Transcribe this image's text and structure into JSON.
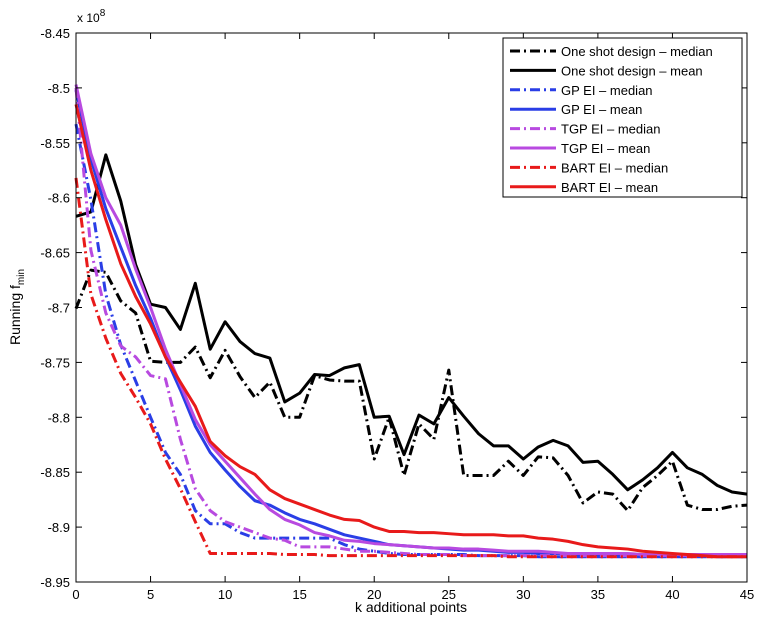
{
  "chart_data": {
    "type": "line",
    "title": "",
    "xlabel": "k additional points",
    "ylabel_main": "Running f",
    "ylabel_sub": "min",
    "y_exponent_base": "x 10",
    "y_exponent_power": "8",
    "xlim": [
      0,
      45
    ],
    "ylim": [
      -8.95,
      -8.45
    ],
    "x_ticks": [
      0,
      5,
      10,
      15,
      20,
      25,
      30,
      35,
      40,
      45
    ],
    "x_tick_labels": [
      "0",
      "5",
      "10",
      "15",
      "20",
      "25",
      "30",
      "35",
      "40",
      "45"
    ],
    "y_ticks": [
      -8.45,
      -8.5,
      -8.55,
      -8.6,
      -8.65,
      -8.7,
      -8.75,
      -8.8,
      -8.85,
      -8.9,
      -8.95
    ],
    "y_tick_labels": [
      "-8.45",
      "-8.5",
      "-8.55",
      "-8.6",
      "-8.65",
      "-8.7",
      "-8.75",
      "-8.8",
      "-8.85",
      "-8.9",
      "-8.95"
    ],
    "grid": false,
    "legend_position": "top-right",
    "series": [
      {
        "name": "One shot design – median",
        "color": "#000000",
        "style": "dashdot",
        "x": [
          0,
          1,
          2,
          3,
          4,
          5,
          6,
          7,
          8,
          9,
          10,
          11,
          12,
          13,
          14,
          15,
          16,
          17,
          18,
          19,
          20,
          21,
          22,
          23,
          24,
          25,
          26,
          27,
          28,
          29,
          30,
          31,
          32,
          33,
          34,
          35,
          36,
          37,
          38,
          39,
          40,
          41,
          42,
          43,
          44,
          45
        ],
        "values": [
          -8.701,
          -8.666,
          -8.668,
          -8.694,
          -8.705,
          -8.749,
          -8.75,
          -8.75,
          -8.736,
          -8.764,
          -8.739,
          -8.763,
          -8.782,
          -8.768,
          -8.8,
          -8.8,
          -8.762,
          -8.766,
          -8.767,
          -8.767,
          -8.838,
          -8.8,
          -8.853,
          -8.806,
          -8.82,
          -8.757,
          -8.853,
          -8.853,
          -8.853,
          -8.84,
          -8.853,
          -8.836,
          -8.837,
          -8.853,
          -8.878,
          -8.868,
          -8.87,
          -8.885,
          -8.864,
          -8.853,
          -8.84,
          -8.88,
          -8.884,
          -8.884,
          -8.881,
          -8.88
        ]
      },
      {
        "name": "One shot design – mean",
        "color": "#000000",
        "style": "solid",
        "x": [
          0,
          1,
          2,
          3,
          4,
          5,
          6,
          7,
          8,
          9,
          10,
          11,
          12,
          13,
          14,
          15,
          16,
          17,
          18,
          19,
          20,
          21,
          22,
          23,
          24,
          25,
          26,
          27,
          28,
          29,
          30,
          31,
          32,
          33,
          34,
          35,
          36,
          37,
          38,
          39,
          40,
          41,
          42,
          43,
          44,
          45
        ],
        "values": [
          -8.617,
          -8.613,
          -8.561,
          -8.603,
          -8.661,
          -8.697,
          -8.7,
          -8.72,
          -8.678,
          -8.738,
          -8.713,
          -8.731,
          -8.742,
          -8.746,
          -8.786,
          -8.778,
          -8.761,
          -8.762,
          -8.755,
          -8.752,
          -8.8,
          -8.799,
          -8.834,
          -8.798,
          -8.806,
          -8.782,
          -8.799,
          -8.815,
          -8.826,
          -8.826,
          -8.838,
          -8.827,
          -8.821,
          -8.826,
          -8.841,
          -8.84,
          -8.852,
          -8.866,
          -8.857,
          -8.846,
          -8.832,
          -8.846,
          -8.852,
          -8.862,
          -8.868,
          -8.87
        ]
      },
      {
        "name": "GP EI – median",
        "color": "#2a3ee6",
        "style": "dashdot",
        "x": [
          0,
          1,
          2,
          3,
          4,
          5,
          6,
          7,
          8,
          9,
          10,
          11,
          12,
          13,
          14,
          15,
          16,
          17,
          18,
          19,
          20,
          21,
          22,
          23,
          24,
          25,
          26,
          27,
          28,
          29,
          30,
          31,
          32,
          33,
          34,
          35,
          36,
          37,
          38,
          39,
          40,
          41,
          42,
          43,
          44,
          45
        ],
        "values": [
          -8.533,
          -8.602,
          -8.688,
          -8.734,
          -8.767,
          -8.8,
          -8.832,
          -8.852,
          -8.885,
          -8.897,
          -8.897,
          -8.905,
          -8.91,
          -8.91,
          -8.91,
          -8.91,
          -8.91,
          -8.91,
          -8.916,
          -8.92,
          -8.922,
          -8.924,
          -8.925,
          -8.925,
          -8.925,
          -8.925,
          -8.925,
          -8.926,
          -8.926,
          -8.926,
          -8.926,
          -8.927,
          -8.927,
          -8.927,
          -8.927,
          -8.927,
          -8.927,
          -8.927,
          -8.927,
          -8.927,
          -8.927,
          -8.927,
          -8.927,
          -8.927,
          -8.927,
          -8.927
        ]
      },
      {
        "name": "GP EI – mean",
        "color": "#2a3ee6",
        "style": "solid",
        "x": [
          0,
          1,
          2,
          3,
          4,
          5,
          6,
          7,
          8,
          9,
          10,
          11,
          12,
          13,
          14,
          15,
          16,
          17,
          18,
          19,
          20,
          21,
          22,
          23,
          24,
          25,
          26,
          27,
          28,
          29,
          30,
          31,
          32,
          33,
          34,
          35,
          36,
          37,
          38,
          39,
          40,
          41,
          42,
          43,
          44,
          45
        ],
        "values": [
          -8.502,
          -8.565,
          -8.61,
          -8.645,
          -8.68,
          -8.71,
          -8.745,
          -8.775,
          -8.808,
          -8.832,
          -8.848,
          -8.863,
          -8.876,
          -8.88,
          -8.887,
          -8.893,
          -8.897,
          -8.902,
          -8.907,
          -8.91,
          -8.913,
          -8.916,
          -8.917,
          -8.918,
          -8.919,
          -8.92,
          -8.921,
          -8.921,
          -8.922,
          -8.923,
          -8.923,
          -8.924,
          -8.924,
          -8.924,
          -8.925,
          -8.925,
          -8.925,
          -8.925,
          -8.925,
          -8.925,
          -8.925,
          -8.925,
          -8.925,
          -8.925,
          -8.925,
          -8.925
        ]
      },
      {
        "name": "TGP EI – median",
        "color": "#b84ae0",
        "style": "dashdot",
        "x": [
          0,
          1,
          2,
          3,
          4,
          5,
          6,
          7,
          8,
          9,
          10,
          11,
          12,
          13,
          14,
          15,
          16,
          17,
          18,
          19,
          20,
          21,
          22,
          23,
          24,
          25,
          26,
          27,
          28,
          29,
          30,
          31,
          32,
          33,
          34,
          35,
          36,
          37,
          38,
          39,
          40,
          41,
          42,
          43,
          44,
          45
        ],
        "values": [
          -8.5,
          -8.648,
          -8.705,
          -8.735,
          -8.745,
          -8.762,
          -8.765,
          -8.82,
          -8.865,
          -8.885,
          -8.895,
          -8.9,
          -8.905,
          -8.91,
          -8.912,
          -8.918,
          -8.918,
          -8.918,
          -8.92,
          -8.922,
          -8.922,
          -8.923,
          -8.924,
          -8.925,
          -8.925,
          -8.925,
          -8.926,
          -8.926,
          -8.926,
          -8.926,
          -8.926,
          -8.926,
          -8.926,
          -8.926,
          -8.926,
          -8.926,
          -8.926,
          -8.926,
          -8.926,
          -8.926,
          -8.926,
          -8.926,
          -8.926,
          -8.926,
          -8.926,
          -8.926
        ]
      },
      {
        "name": "TGP EI – mean",
        "color": "#b84ae0",
        "style": "solid",
        "x": [
          0,
          1,
          2,
          3,
          4,
          5,
          6,
          7,
          8,
          9,
          10,
          11,
          12,
          13,
          14,
          15,
          16,
          17,
          18,
          19,
          20,
          21,
          22,
          23,
          24,
          25,
          26,
          27,
          28,
          29,
          30,
          31,
          32,
          33,
          34,
          35,
          36,
          37,
          38,
          39,
          40,
          41,
          42,
          43,
          44,
          45
        ],
        "values": [
          -8.497,
          -8.56,
          -8.6,
          -8.625,
          -8.665,
          -8.7,
          -8.738,
          -8.77,
          -8.802,
          -8.825,
          -8.84,
          -8.855,
          -8.87,
          -8.884,
          -8.893,
          -8.898,
          -8.905,
          -8.908,
          -8.912,
          -8.913,
          -8.915,
          -8.916,
          -8.917,
          -8.918,
          -8.919,
          -8.919,
          -8.92,
          -8.92,
          -8.921,
          -8.922,
          -8.922,
          -8.922,
          -8.923,
          -8.924,
          -8.924,
          -8.924,
          -8.924,
          -8.924,
          -8.925,
          -8.925,
          -8.925,
          -8.925,
          -8.925,
          -8.925,
          -8.925,
          -8.925
        ]
      },
      {
        "name": "BART EI – median",
        "color": "#e81a1a",
        "style": "dashdot",
        "x": [
          0,
          1,
          2,
          3,
          4,
          5,
          6,
          7,
          8,
          9,
          10,
          11,
          12,
          13,
          14,
          15,
          16,
          17,
          18,
          19,
          20,
          21,
          22,
          23,
          24,
          25,
          26,
          27,
          28,
          29,
          30,
          31,
          32,
          33,
          34,
          35,
          36,
          37,
          38,
          39,
          40,
          41,
          42,
          43,
          44,
          45
        ],
        "values": [
          -8.582,
          -8.688,
          -8.728,
          -8.76,
          -8.782,
          -8.806,
          -8.838,
          -8.865,
          -8.895,
          -8.924,
          -8.924,
          -8.924,
          -8.924,
          -8.924,
          -8.925,
          -8.925,
          -8.925,
          -8.926,
          -8.926,
          -8.926,
          -8.926,
          -8.926,
          -8.926,
          -8.926,
          -8.926,
          -8.926,
          -8.926,
          -8.926,
          -8.926,
          -8.927,
          -8.927,
          -8.927,
          -8.927,
          -8.927,
          -8.927,
          -8.927,
          -8.927,
          -8.927,
          -8.927,
          -8.927,
          -8.927,
          -8.927,
          -8.927,
          -8.927,
          -8.927,
          -8.927
        ]
      },
      {
        "name": "BART EI – mean",
        "color": "#e81a1a",
        "style": "solid",
        "x": [
          0,
          1,
          2,
          3,
          4,
          5,
          6,
          7,
          8,
          9,
          10,
          11,
          12,
          13,
          14,
          15,
          16,
          17,
          18,
          19,
          20,
          21,
          22,
          23,
          24,
          25,
          26,
          27,
          28,
          29,
          30,
          31,
          32,
          33,
          34,
          35,
          36,
          37,
          38,
          39,
          40,
          41,
          42,
          43,
          44,
          45
        ],
        "values": [
          -8.515,
          -8.575,
          -8.62,
          -8.66,
          -8.69,
          -8.715,
          -8.745,
          -8.768,
          -8.79,
          -8.822,
          -8.835,
          -8.845,
          -8.852,
          -8.866,
          -8.874,
          -8.879,
          -8.884,
          -8.889,
          -8.893,
          -8.894,
          -8.9,
          -8.904,
          -8.904,
          -8.905,
          -8.905,
          -8.906,
          -8.907,
          -8.907,
          -8.907,
          -8.908,
          -8.908,
          -8.91,
          -8.911,
          -8.913,
          -8.916,
          -8.918,
          -8.919,
          -8.92,
          -8.922,
          -8.923,
          -8.924,
          -8.925,
          -8.926,
          -8.927,
          -8.927,
          -8.927
        ]
      }
    ]
  }
}
